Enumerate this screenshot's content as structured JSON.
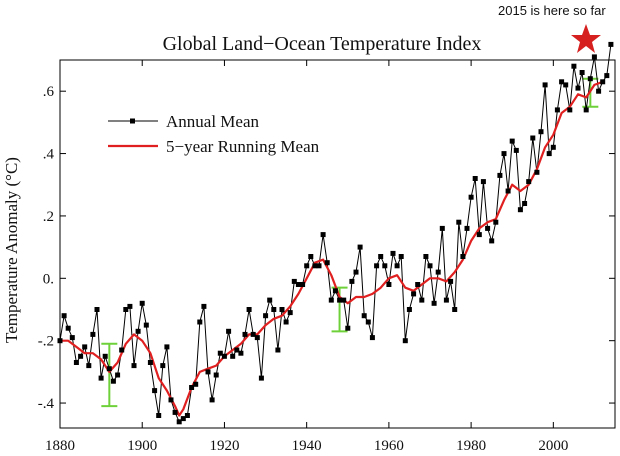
{
  "annotation": {
    "text": "2015 is here so far",
    "star_color": "#d62020"
  },
  "chart_data": {
    "type": "line",
    "title": "Global Land−Ocean Temperature Index",
    "ylabel": "Temperature Anomaly (°C)",
    "xlabel": "",
    "xlim": [
      1880,
      2015
    ],
    "ylim": [
      -0.48,
      0.7
    ],
    "x_ticks": [
      1880,
      1900,
      1920,
      1940,
      1960,
      1980,
      2000
    ],
    "y_ticks": [
      {
        "v": -0.4,
        "label": "-.4"
      },
      {
        "v": -0.2,
        "label": "-.2"
      },
      {
        "v": 0.0,
        "label": "0."
      },
      {
        "v": 0.2,
        "label": ".2"
      },
      {
        "v": 0.4,
        "label": ".4"
      },
      {
        "v": 0.6,
        "label": ".6"
      }
    ],
    "grid": false,
    "legend": "upper-left",
    "series": [
      {
        "name": "Annual Mean",
        "color": "#000000",
        "marker": "square",
        "x": [
          1880,
          1881,
          1882,
          1883,
          1884,
          1885,
          1886,
          1887,
          1888,
          1889,
          1890,
          1891,
          1892,
          1893,
          1894,
          1895,
          1896,
          1897,
          1898,
          1899,
          1900,
          1901,
          1902,
          1903,
          1904,
          1905,
          1906,
          1907,
          1908,
          1909,
          1910,
          1911,
          1912,
          1913,
          1914,
          1915,
          1916,
          1917,
          1918,
          1919,
          1920,
          1921,
          1922,
          1923,
          1924,
          1925,
          1926,
          1927,
          1928,
          1929,
          1930,
          1931,
          1932,
          1933,
          1934,
          1935,
          1936,
          1937,
          1938,
          1939,
          1940,
          1941,
          1942,
          1943,
          1944,
          1945,
          1946,
          1947,
          1948,
          1949,
          1950,
          1951,
          1952,
          1953,
          1954,
          1955,
          1956,
          1957,
          1958,
          1959,
          1960,
          1961,
          1962,
          1963,
          1964,
          1965,
          1966,
          1967,
          1968,
          1969,
          1970,
          1971,
          1972,
          1973,
          1974,
          1975,
          1976,
          1977,
          1978,
          1979,
          1980,
          1981,
          1982,
          1983,
          1984,
          1985,
          1986,
          1987,
          1988,
          1989,
          1990,
          1991,
          1992,
          1993,
          1994,
          1995,
          1996,
          1997,
          1998,
          1999,
          2000,
          2001,
          2002,
          2003,
          2004,
          2005,
          2006,
          2007,
          2008,
          2009,
          2010,
          2011,
          2012,
          2013,
          2014
        ],
        "values": [
          -0.2,
          -0.12,
          -0.16,
          -0.19,
          -0.27,
          -0.25,
          -0.22,
          -0.28,
          -0.18,
          -0.1,
          -0.32,
          -0.25,
          -0.29,
          -0.33,
          -0.31,
          -0.23,
          -0.1,
          -0.09,
          -0.28,
          -0.17,
          -0.08,
          -0.15,
          -0.27,
          -0.36,
          -0.44,
          -0.28,
          -0.22,
          -0.39,
          -0.43,
          -0.46,
          -0.45,
          -0.44,
          -0.35,
          -0.34,
          -0.14,
          -0.09,
          -0.3,
          -0.39,
          -0.31,
          -0.24,
          -0.25,
          -0.17,
          -0.25,
          -0.23,
          -0.24,
          -0.18,
          -0.1,
          -0.18,
          -0.19,
          -0.32,
          -0.12,
          -0.07,
          -0.1,
          -0.23,
          -0.1,
          -0.14,
          -0.11,
          -0.01,
          -0.02,
          -0.02,
          0.04,
          0.07,
          0.04,
          0.04,
          0.14,
          0.05,
          -0.07,
          -0.04,
          -0.07,
          -0.07,
          -0.16,
          -0.01,
          0.02,
          0.1,
          -0.12,
          -0.14,
          -0.19,
          0.04,
          0.07,
          0.04,
          -0.02,
          0.08,
          0.04,
          0.07,
          -0.2,
          -0.1,
          -0.05,
          -0.02,
          -0.07,
          0.07,
          0.04,
          -0.08,
          0.02,
          0.16,
          -0.07,
          -0.01,
          -0.1,
          0.18,
          0.07,
          0.16,
          0.26,
          0.32,
          0.14,
          0.31,
          0.16,
          0.12,
          0.18,
          0.33,
          0.4,
          0.28,
          0.44,
          0.41,
          0.22,
          0.24,
          0.31,
          0.45,
          0.34,
          0.47,
          0.62,
          0.4,
          0.42,
          0.54,
          0.63,
          0.62,
          0.54,
          0.68,
          0.61,
          0.66,
          0.54,
          0.64,
          0.71,
          0.6,
          0.63,
          0.65,
          0.75
        ]
      },
      {
        "name": "5−year Running Mean",
        "color": "#e02020",
        "marker": "none",
        "x": [
          1880,
          1882,
          1884,
          1886,
          1888,
          1890,
          1892,
          1894,
          1896,
          1898,
          1900,
          1902,
          1904,
          1906,
          1908,
          1909,
          1910,
          1912,
          1914,
          1916,
          1918,
          1920,
          1922,
          1924,
          1926,
          1928,
          1930,
          1932,
          1934,
          1936,
          1938,
          1940,
          1942,
          1944,
          1946,
          1948,
          1950,
          1952,
          1954,
          1956,
          1958,
          1960,
          1962,
          1964,
          1966,
          1968,
          1970,
          1972,
          1974,
          1976,
          1978,
          1980,
          1982,
          1984,
          1986,
          1988,
          1990,
          1992,
          1994,
          1996,
          1998,
          2000,
          2002,
          2004,
          2006,
          2008,
          2010,
          2012
        ],
        "values": [
          -0.2,
          -0.2,
          -0.22,
          -0.24,
          -0.24,
          -0.26,
          -0.3,
          -0.27,
          -0.21,
          -0.18,
          -0.2,
          -0.24,
          -0.32,
          -0.36,
          -0.41,
          -0.44,
          -0.42,
          -0.35,
          -0.3,
          -0.29,
          -0.28,
          -0.25,
          -0.23,
          -0.21,
          -0.18,
          -0.18,
          -0.15,
          -0.13,
          -0.12,
          -0.09,
          -0.05,
          0.0,
          0.05,
          0.06,
          0.01,
          -0.06,
          -0.08,
          -0.06,
          -0.06,
          -0.05,
          -0.03,
          0.0,
          0.01,
          -0.03,
          -0.04,
          -0.02,
          0.0,
          0.0,
          -0.01,
          0.02,
          0.06,
          0.12,
          0.16,
          0.18,
          0.19,
          0.25,
          0.3,
          0.28,
          0.3,
          0.35,
          0.42,
          0.46,
          0.53,
          0.55,
          0.59,
          0.58,
          0.62,
          0.63
        ]
      }
    ],
    "error_bars": [
      {
        "x": 1892,
        "low": -0.41,
        "high": -0.21
      },
      {
        "x": 1948,
        "low": -0.17,
        "high": -0.03
      },
      {
        "x": 2009,
        "low": 0.55,
        "high": 0.64
      }
    ],
    "error_bar_color": "#6fd13a"
  }
}
